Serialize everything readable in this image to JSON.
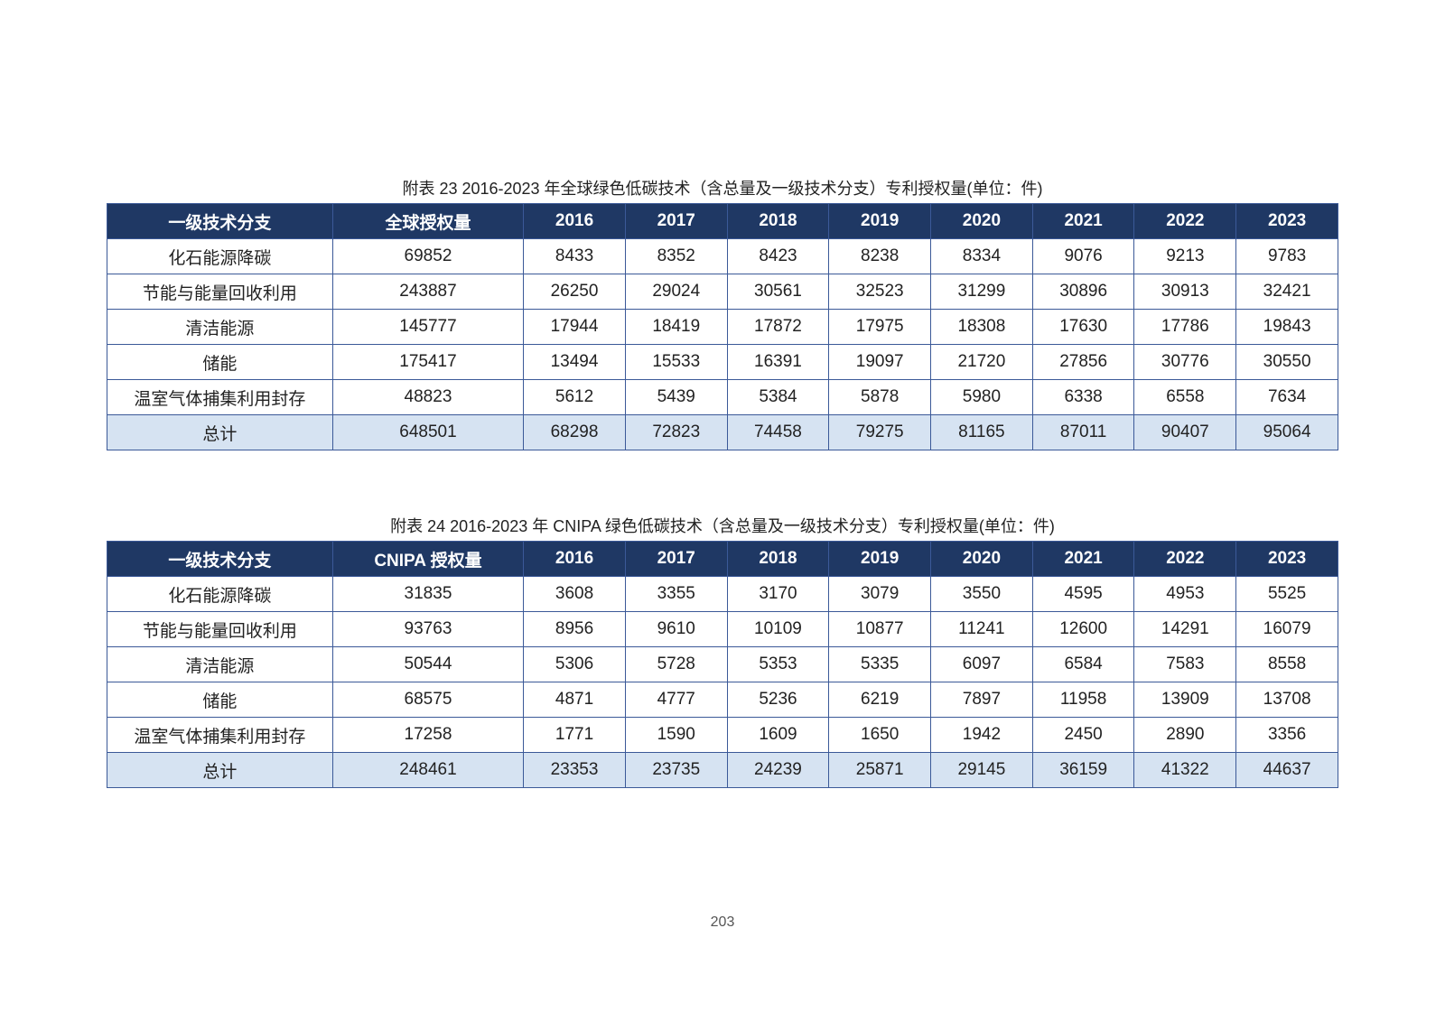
{
  "page_number": "203",
  "colors": {
    "header_bg": "#1f3864",
    "header_text": "#ffffff",
    "border": "#3b5998",
    "total_row_bg": "#d6e3f2",
    "text": "#222222",
    "background": "#ffffff"
  },
  "tables": [
    {
      "caption": "附表 23 2016-2023 年全球绿色低碳技术（含总量及一级技术分支）专利授权量(单位：件)",
      "columns": [
        "一级技术分支",
        "全球授权量",
        "2016",
        "2017",
        "2018",
        "2019",
        "2020",
        "2021",
        "2022",
        "2023"
      ],
      "rows": [
        [
          "化石能源降碳",
          "69852",
          "8433",
          "8352",
          "8423",
          "8238",
          "8334",
          "9076",
          "9213",
          "9783"
        ],
        [
          "节能与能量回收利用",
          "243887",
          "26250",
          "29024",
          "30561",
          "32523",
          "31299",
          "30896",
          "30913",
          "32421"
        ],
        [
          "清洁能源",
          "145777",
          "17944",
          "18419",
          "17872",
          "17975",
          "18308",
          "17630",
          "17786",
          "19843"
        ],
        [
          "储能",
          "175417",
          "13494",
          "15533",
          "16391",
          "19097",
          "21720",
          "27856",
          "30776",
          "30550"
        ],
        [
          "温室气体捕集利用封存",
          "48823",
          "5612",
          "5439",
          "5384",
          "5878",
          "5980",
          "6338",
          "6558",
          "7634"
        ]
      ],
      "total_row": [
        "总计",
        "648501",
        "68298",
        "72823",
        "74458",
        "79275",
        "81165",
        "87011",
        "90407",
        "95064"
      ]
    },
    {
      "caption": "附表 24 2016-2023 年 CNIPA 绿色低碳技术（含总量及一级技术分支）专利授权量(单位：件)",
      "columns": [
        "一级技术分支",
        "CNIPA 授权量",
        "2016",
        "2017",
        "2018",
        "2019",
        "2020",
        "2021",
        "2022",
        "2023"
      ],
      "rows": [
        [
          "化石能源降碳",
          "31835",
          "3608",
          "3355",
          "3170",
          "3079",
          "3550",
          "4595",
          "4953",
          "5525"
        ],
        [
          "节能与能量回收利用",
          "93763",
          "8956",
          "9610",
          "10109",
          "10877",
          "11241",
          "12600",
          "14291",
          "16079"
        ],
        [
          "清洁能源",
          "50544",
          "5306",
          "5728",
          "5353",
          "5335",
          "6097",
          "6584",
          "7583",
          "8558"
        ],
        [
          "储能",
          "68575",
          "4871",
          "4777",
          "5236",
          "6219",
          "7897",
          "11958",
          "13909",
          "13708"
        ],
        [
          "温室气体捕集利用封存",
          "17258",
          "1771",
          "1590",
          "1609",
          "1650",
          "1942",
          "2450",
          "2890",
          "3356"
        ]
      ],
      "total_row": [
        "总计",
        "248461",
        "23353",
        "23735",
        "24239",
        "25871",
        "29145",
        "36159",
        "41322",
        "44637"
      ]
    }
  ]
}
